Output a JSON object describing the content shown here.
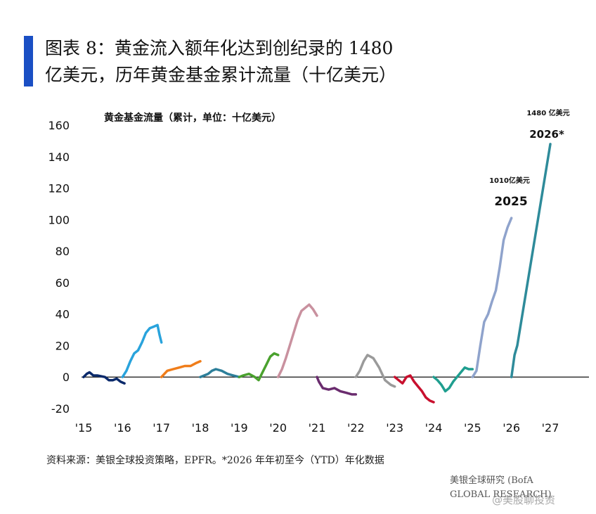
{
  "title": {
    "line1": "图表 8：黄金流入额年化达到创纪录的 1480",
    "line2": "亿美元，历年黄金基金累计流量（十亿美元）"
  },
  "footer": {
    "source": "资料来源：美银全球投资策略，EPFR。*2026 年年初至今（YTD）年化数据",
    "credit_line1": "美银全球研究 (BofA",
    "credit_line2": "GLOBAL RESEARCH)"
  },
  "watermark": "@美股聊投资",
  "chart_data": {
    "type": "line",
    "title": "黄金基金流量（累计，单位：十亿美元）",
    "xlabel": "",
    "ylabel": "",
    "ylim": [
      -20,
      160
    ],
    "xlim": [
      2015,
      2028
    ],
    "y_ticks": [
      "-20",
      "0",
      "20",
      "40",
      "60",
      "80",
      "100",
      "120",
      "140",
      "160"
    ],
    "x_ticks": [
      "'15",
      "'16",
      "'17",
      "'18",
      "'19",
      "'20",
      "'21",
      "'22",
      "'23",
      "'24",
      "'25",
      "'26",
      "'27"
    ],
    "grid": false,
    "legend": "none",
    "annotations": [
      {
        "label": "1010亿美元",
        "year": "2025"
      },
      {
        "label": "1480 亿美元",
        "year": "2026*"
      }
    ],
    "series": [
      {
        "color": "#0b2a6b",
        "x": [
          2015.0,
          2015.08,
          2015.15,
          2015.25,
          2015.35,
          2015.45,
          2015.55,
          2015.65,
          2015.75,
          2015.85,
          2015.95,
          2016.05
        ],
        "y": [
          0,
          2,
          3,
          1,
          1,
          0.5,
          0,
          -2,
          -2,
          -1,
          -3,
          -4
        ]
      },
      {
        "color": "#29a3dc",
        "x": [
          2016.0,
          2016.1,
          2016.2,
          2016.3,
          2016.4,
          2016.5,
          2016.6,
          2016.7,
          2016.8,
          2016.9,
          2016.95,
          2017.0
        ],
        "y": [
          0,
          4,
          10,
          15,
          17,
          22,
          28,
          31,
          32,
          33,
          27,
          22
        ]
      },
      {
        "color": "#f07d1a",
        "x": [
          2017.0,
          2017.15,
          2017.3,
          2017.45,
          2017.6,
          2017.75,
          2017.9,
          2018.0
        ],
        "y": [
          0,
          4,
          5,
          6,
          7,
          7,
          9,
          10
        ]
      },
      {
        "color": "#2d7f9a",
        "x": [
          2018.0,
          2018.1,
          2018.2,
          2018.3,
          2018.4,
          2018.55,
          2018.7,
          2018.85,
          2019.0
        ],
        "y": [
          0,
          1,
          2,
          4,
          5,
          4,
          2,
          1,
          0
        ]
      },
      {
        "color": "#4aa12e",
        "x": [
          2019.0,
          2019.1,
          2019.25,
          2019.4,
          2019.5,
          2019.6,
          2019.7,
          2019.8,
          2019.9,
          2020.0
        ],
        "y": [
          0,
          1,
          2,
          0,
          -2,
          3,
          8,
          13,
          15,
          14
        ]
      },
      {
        "color": "#c9919f",
        "x": [
          2020.0,
          2020.1,
          2020.2,
          2020.3,
          2020.4,
          2020.5,
          2020.6,
          2020.7,
          2020.8,
          2020.9,
          2021.0
        ],
        "y": [
          0,
          5,
          12,
          20,
          28,
          36,
          42,
          44,
          46,
          43,
          39
        ]
      },
      {
        "color": "#6a2c6e",
        "x": [
          2021.0,
          2021.05,
          2021.15,
          2021.3,
          2021.45,
          2021.6,
          2021.75,
          2021.9,
          2022.0
        ],
        "y": [
          0,
          -3,
          -7,
          -8,
          -7,
          -9,
          -10,
          -11,
          -11
        ]
      },
      {
        "color": "#9a9a9a",
        "x": [
          2022.0,
          2022.1,
          2022.2,
          2022.3,
          2022.45,
          2022.6,
          2022.75,
          2022.9,
          2023.0
        ],
        "y": [
          0,
          4,
          10,
          14,
          12,
          6,
          -2,
          -5,
          -6
        ]
      },
      {
        "color": "#c8102e",
        "x": [
          2023.0,
          2023.1,
          2023.2,
          2023.3,
          2023.4,
          2023.5,
          2023.6,
          2023.7,
          2023.8,
          2023.9,
          2024.0
        ],
        "y": [
          0,
          -2,
          -4,
          0,
          1,
          -3,
          -6,
          -9,
          -13,
          -15,
          -16
        ]
      },
      {
        "color": "#1f9e8f",
        "x": [
          2024.0,
          2024.1,
          2024.2,
          2024.3,
          2024.4,
          2024.5,
          2024.6,
          2024.7,
          2024.8,
          2024.9,
          2025.0
        ],
        "y": [
          0,
          -2,
          -5,
          -9,
          -7,
          -3,
          0,
          3,
          6,
          5,
          5
        ]
      },
      {
        "color": "#8fa3cc",
        "x": [
          2025.0,
          2025.1,
          2025.2,
          2025.3,
          2025.4,
          2025.5,
          2025.6,
          2025.7,
          2025.8,
          2025.9,
          2026.0
        ],
        "y": [
          0,
          4,
          20,
          35,
          40,
          48,
          55,
          70,
          87,
          95,
          101
        ]
      },
      {
        "color": "#2e8b9a",
        "x": [
          2026.0,
          2026.08,
          2026.15,
          2027.0
        ],
        "y": [
          0,
          14,
          20,
          148
        ]
      }
    ]
  }
}
